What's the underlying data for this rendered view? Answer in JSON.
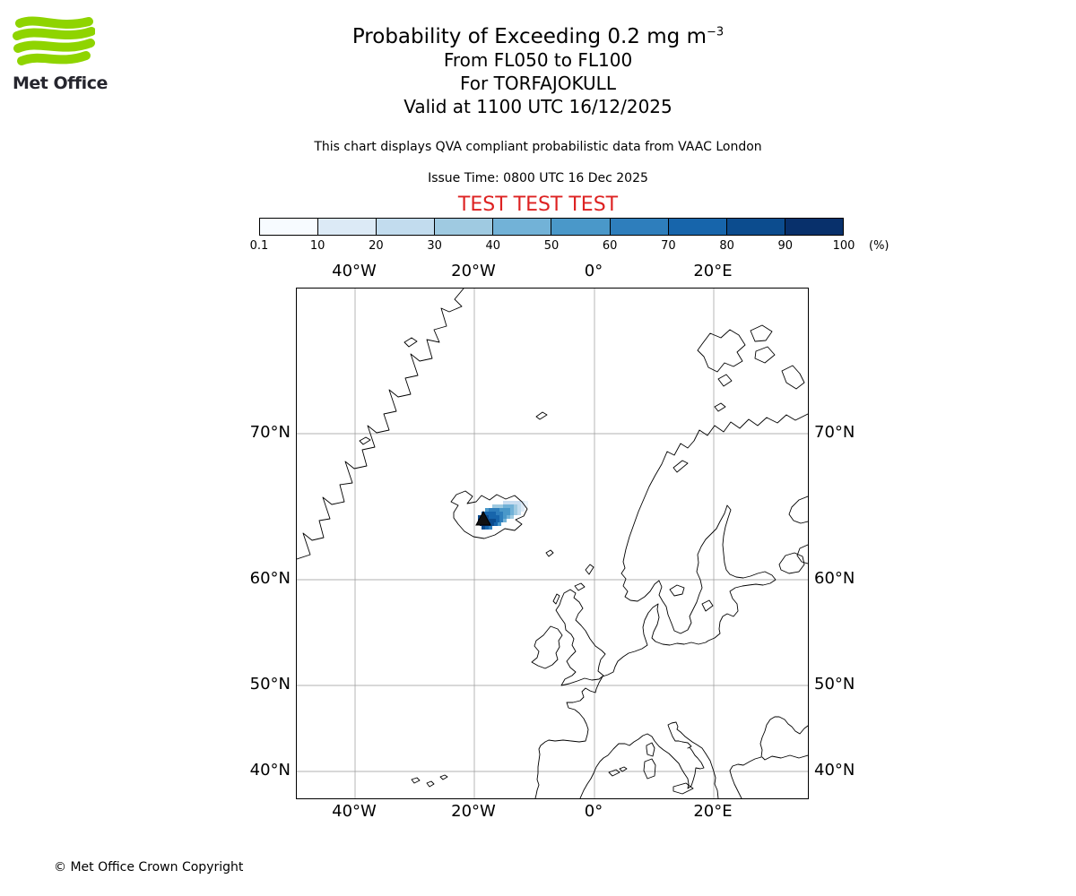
{
  "logo": {
    "name": "Met Office"
  },
  "header": {
    "title_main": "Probability of Exceeding 0.2 mg m",
    "title_sup": "−3",
    "line_flight_levels": "From FL050 to FL100",
    "line_volcano": "For TORFAJOKULL",
    "line_valid": "Valid at 1100 UTC 16/12/2025",
    "qva_note": "This chart displays QVA compliant probabilistic data from VAAC London",
    "issue_time": "Issue Time: 0800 UTC 16 Dec 2025",
    "test_banner": "TEST TEST TEST"
  },
  "legend": {
    "tick_labels": [
      "0.1",
      "10",
      "20",
      "30",
      "40",
      "50",
      "60",
      "70",
      "80",
      "90",
      "100"
    ],
    "unit_label": "(%)",
    "colors": [
      "#f7fbff",
      "#dceaf6",
      "#c2dcee",
      "#9fcae1",
      "#72b2d7",
      "#4a98c9",
      "#2e7ebc",
      "#1765ab",
      "#0c4c8e",
      "#08306b"
    ]
  },
  "map": {
    "lon_labels": [
      "40°W",
      "20°W",
      "0°",
      "20°E"
    ],
    "lat_labels": [
      "70°N",
      "60°N",
      "50°N",
      "40°N"
    ],
    "plume_cells": [
      [
        230,
        237,
        "#c9ddf0"
      ],
      [
        234,
        237,
        "#c9ddf0"
      ],
      [
        238,
        237,
        "#c9ddf0"
      ],
      [
        242,
        237,
        "#c9ddf0"
      ],
      [
        246,
        237,
        "#c9ddf0"
      ],
      [
        250,
        237,
        "#dceaf6"
      ],
      [
        254,
        237,
        "#eef5fb"
      ],
      [
        218,
        241,
        "#9fcae1"
      ],
      [
        222,
        241,
        "#9fcae1"
      ],
      [
        226,
        241,
        "#9fcae1"
      ],
      [
        230,
        241,
        "#72b2d7"
      ],
      [
        234,
        241,
        "#72b2d7"
      ],
      [
        238,
        241,
        "#72b2d7"
      ],
      [
        242,
        241,
        "#9fcae1"
      ],
      [
        246,
        241,
        "#c2dcee"
      ],
      [
        250,
        241,
        "#dceaf6"
      ],
      [
        254,
        241,
        "#eef5fb"
      ],
      [
        210,
        245,
        "#4a98c9"
      ],
      [
        214,
        245,
        "#2e7ebc"
      ],
      [
        218,
        245,
        "#2e7ebc"
      ],
      [
        222,
        245,
        "#2e7ebc"
      ],
      [
        226,
        245,
        "#4a98c9"
      ],
      [
        230,
        245,
        "#4a98c9"
      ],
      [
        234,
        245,
        "#4a98c9"
      ],
      [
        238,
        245,
        "#72b2d7"
      ],
      [
        242,
        245,
        "#9fcae1"
      ],
      [
        246,
        245,
        "#c2dcee"
      ],
      [
        250,
        245,
        "#dceaf6"
      ],
      [
        206,
        249,
        "#1765ab"
      ],
      [
        210,
        249,
        "#1765ab"
      ],
      [
        214,
        249,
        "#1765ab"
      ],
      [
        218,
        249,
        "#1765ab"
      ],
      [
        222,
        249,
        "#2e7ebc"
      ],
      [
        226,
        249,
        "#2e7ebc"
      ],
      [
        230,
        249,
        "#4a98c9"
      ],
      [
        234,
        249,
        "#4a98c9"
      ],
      [
        238,
        249,
        "#72b2d7"
      ],
      [
        242,
        249,
        "#9fcae1"
      ],
      [
        246,
        249,
        "#c2dcee"
      ],
      [
        202,
        253,
        "#0c4c8e"
      ],
      [
        206,
        253,
        "#0c4c8e"
      ],
      [
        210,
        253,
        "#0c4c8e"
      ],
      [
        214,
        253,
        "#1765ab"
      ],
      [
        218,
        253,
        "#1765ab"
      ],
      [
        222,
        253,
        "#1765ab"
      ],
      [
        226,
        253,
        "#2e7ebc"
      ],
      [
        230,
        253,
        "#4a98c9"
      ],
      [
        234,
        253,
        "#72b2d7"
      ],
      [
        238,
        253,
        "#9fcae1"
      ],
      [
        202,
        257,
        "#08306b"
      ],
      [
        206,
        257,
        "#08306b"
      ],
      [
        210,
        257,
        "#0c4c8e"
      ],
      [
        214,
        257,
        "#0c4c8e"
      ],
      [
        218,
        257,
        "#0c4c8e"
      ],
      [
        222,
        257,
        "#1765ab"
      ],
      [
        226,
        257,
        "#2e7ebc"
      ],
      [
        230,
        257,
        "#72b2d7"
      ],
      [
        204,
        261,
        "#08306b"
      ],
      [
        208,
        261,
        "#08306b"
      ],
      [
        212,
        261,
        "#08306b"
      ],
      [
        216,
        261,
        "#0c4c8e"
      ],
      [
        220,
        261,
        "#1765ab"
      ],
      [
        224,
        261,
        "#4a98c9"
      ],
      [
        206,
        265,
        "#0c4c8e"
      ],
      [
        210,
        265,
        "#1765ab"
      ],
      [
        214,
        265,
        "#2e7ebc"
      ]
    ]
  },
  "footer": {
    "copyright": "© Met Office Crown Copyright"
  }
}
